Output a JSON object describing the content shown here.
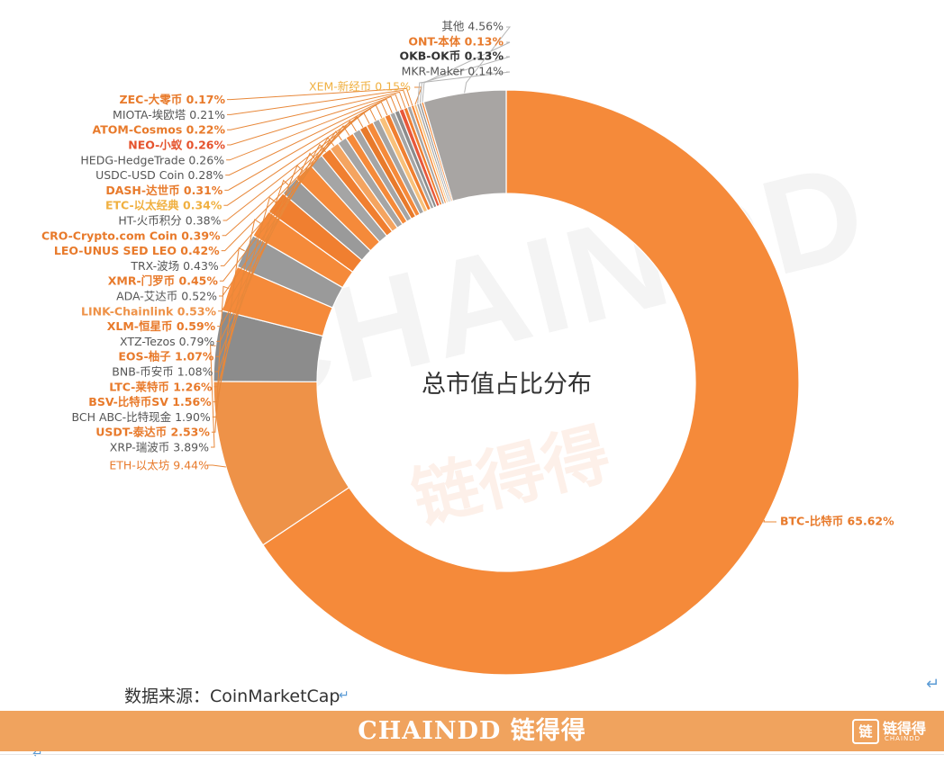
{
  "chart_data": {
    "type": "pie",
    "title": "总市值占比分布",
    "source": "数据来源：CoinMarketCap",
    "slices": [
      {
        "label": "BTC-比特币",
        "value": 65.62,
        "color": "#f58a3a",
        "label_color": "#e87a2b"
      },
      {
        "label": "ETH-以太坊",
        "value": 9.44,
        "color": "#ee9248",
        "label_color": "#e87a2b"
      },
      {
        "label": "XRP-瑞波币",
        "value": 3.89,
        "color": "#8c8c8c",
        "label_color": "#555555"
      },
      {
        "label": "USDT-泰达币",
        "value": 2.53,
        "color": "#f58a3a",
        "label_color": "#e87a2b"
      },
      {
        "label": "BCH ABC-比特现金",
        "value": 1.9,
        "color": "#9a9a9a",
        "label_color": "#555555"
      },
      {
        "label": "BSV-比特币SV",
        "value": 1.56,
        "color": "#f58a3a",
        "label_color": "#e87a2b"
      },
      {
        "label": "LTC-莱特币",
        "value": 1.26,
        "color": "#f07f30",
        "label_color": "#e87a2b"
      },
      {
        "label": "BNB-币安币",
        "value": 1.08,
        "color": "#9a9a9a",
        "label_color": "#555555"
      },
      {
        "label": "EOS-柚子",
        "value": 1.07,
        "color": "#f58a3a",
        "label_color": "#e87a2b"
      },
      {
        "label": "XTZ-Tezos",
        "value": 0.79,
        "color": "#a5a5a5",
        "label_color": "#555555"
      },
      {
        "label": "XLM-恒星币",
        "value": 0.59,
        "color": "#f07f30",
        "label_color": "#e87a2b"
      },
      {
        "label": "LINK-Chainlink",
        "value": 0.53,
        "color": "#f4a460",
        "label_color": "#ee9248"
      },
      {
        "label": "ADA-艾达币",
        "value": 0.52,
        "color": "#a5a5a5",
        "label_color": "#555555"
      },
      {
        "label": "XMR-门罗币",
        "value": 0.45,
        "color": "#f58a3a",
        "label_color": "#e87a2b"
      },
      {
        "label": "TRX-波场",
        "value": 0.43,
        "color": "#a5a5a5",
        "label_color": "#555555"
      },
      {
        "label": "LEO-UNUS SED LEO",
        "value": 0.42,
        "color": "#e87a2b",
        "label_color": "#e87a2b"
      },
      {
        "label": "CRO-Crypto.com Coin",
        "value": 0.39,
        "color": "#f58a3a",
        "label_color": "#e87a2b"
      },
      {
        "label": "HT-火币积分",
        "value": 0.38,
        "color": "#a5a5a5",
        "label_color": "#555555"
      },
      {
        "label": "ETC-以太经典",
        "value": 0.34,
        "color": "#f8c07a",
        "label_color": "#f0b040"
      },
      {
        "label": "DASH-达世币",
        "value": 0.31,
        "color": "#f07f30",
        "label_color": "#e87a2b"
      },
      {
        "label": "USDC-USD Coin",
        "value": 0.28,
        "color": "#a5a5a5",
        "label_color": "#555555"
      },
      {
        "label": "HEDG-HedgeTrade",
        "value": 0.26,
        "color": "#8c8c8c",
        "label_color": "#555555"
      },
      {
        "label": "NEO-小蚁",
        "value": 0.26,
        "color": "#e8583a",
        "label_color": "#e5532d"
      },
      {
        "label": "ATOM-Cosmos",
        "value": 0.22,
        "color": "#f07f30",
        "label_color": "#e87a2b"
      },
      {
        "label": "MIOTA-埃欧塔",
        "value": 0.21,
        "color": "#a5a5a5",
        "label_color": "#555555"
      },
      {
        "label": "ZEC-大零币",
        "value": 0.17,
        "color": "#f58a3a",
        "label_color": "#e87a2b"
      },
      {
        "label": "XEM-新经币",
        "value": 0.15,
        "color": "#f8c07a",
        "label_color": "#f0b040"
      },
      {
        "label": "MKR-Maker",
        "value": 0.14,
        "color": "#a5a5a5",
        "label_color": "#555555"
      },
      {
        "label": "OKB-OK币",
        "value": 0.13,
        "color": "#8c8c8c",
        "label_color": "#333333"
      },
      {
        "label": "ONT-本体",
        "value": 0.13,
        "color": "#f58a3a",
        "label_color": "#e87a2b"
      },
      {
        "label": "其他",
        "value": 4.56,
        "color": "#a8a5a3",
        "label_color": "#555555"
      }
    ]
  },
  "watermark": {
    "main": "CHAINDD",
    "sub": "链得得"
  },
  "footer": {
    "logo_text": "CHAINDD 链得得",
    "mini_icon": "链",
    "mini_text": "链得得",
    "mini_sub": "CHAINDD"
  },
  "colors": {
    "footer_bg": "#f0a35e",
    "leader_line": "#e8883a"
  }
}
